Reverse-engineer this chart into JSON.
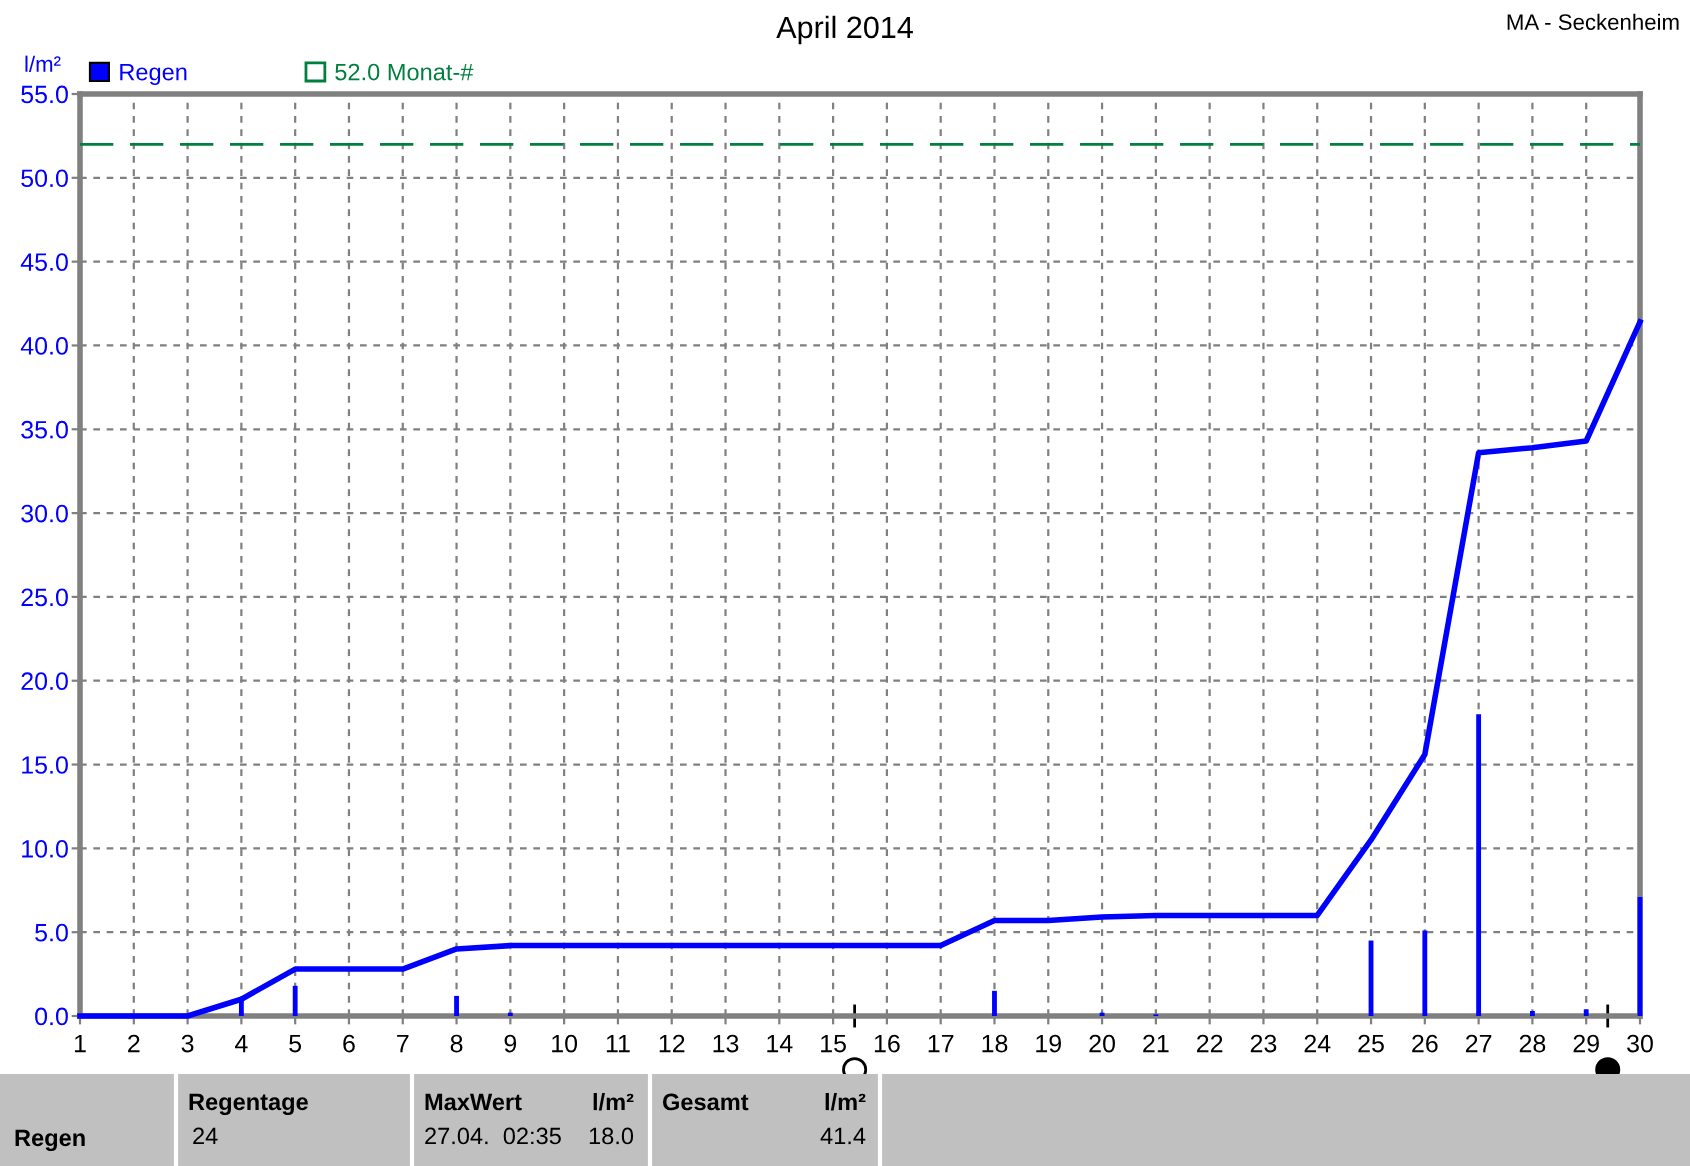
{
  "chart_data": {
    "type": "bar",
    "title": "April 2014",
    "subtitle": "MA - Seckenheim",
    "ylabel": "l/m²",
    "x": [
      1,
      2,
      3,
      4,
      5,
      6,
      7,
      8,
      9,
      10,
      11,
      12,
      13,
      14,
      15,
      16,
      17,
      18,
      19,
      20,
      21,
      22,
      23,
      24,
      25,
      26,
      27,
      28,
      29,
      30
    ],
    "series": [
      {
        "name": "Regen",
        "color": "#0000ff",
        "values": [
          0,
          0,
          0,
          1.0,
          1.8,
          0,
          0,
          1.2,
          0.2,
          0,
          0,
          0,
          0,
          0,
          0,
          0,
          0,
          1.5,
          0,
          0.2,
          0.1,
          0,
          0,
          0,
          4.5,
          5.1,
          18.0,
          0.3,
          0.4,
          7.1
        ]
      },
      {
        "type": "line",
        "color": "#0000ff",
        "values": [
          0,
          0,
          0,
          1.0,
          2.8,
          2.8,
          2.8,
          4.0,
          4.2,
          4.2,
          4.2,
          4.2,
          4.2,
          4.2,
          4.2,
          4.2,
          4.2,
          5.7,
          5.7,
          5.9,
          6.0,
          6.0,
          6.0,
          6.0,
          10.5,
          15.6,
          33.6,
          33.9,
          34.3,
          41.4
        ]
      }
    ],
    "xlim": [
      1,
      30
    ],
    "xticks": [
      1,
      2,
      3,
      4,
      5,
      6,
      7,
      8,
      9,
      10,
      11,
      12,
      13,
      14,
      15,
      16,
      17,
      18,
      19,
      20,
      21,
      22,
      23,
      24,
      25,
      26,
      27,
      28,
      29,
      30
    ],
    "ylim": [
      0,
      55
    ],
    "yticks": [
      {
        "value": 0,
        "label": "0.0"
      },
      {
        "value": 5,
        "label": "5.0"
      },
      {
        "value": 10,
        "label": "10.0"
      },
      {
        "value": 15,
        "label": "15.0"
      },
      {
        "value": 20,
        "label": "20.0"
      },
      {
        "value": 25,
        "label": "25.0"
      },
      {
        "value": 30,
        "label": "30.0"
      },
      {
        "value": 35,
        "label": "35.0"
      },
      {
        "value": 40,
        "label": "40.0"
      },
      {
        "value": 45,
        "label": "45.0"
      },
      {
        "value": 50,
        "label": "50.0"
      },
      {
        "value": 55,
        "label": "55.0"
      }
    ],
    "ref_lines": [
      {
        "axis": "y",
        "value": 52,
        "label": "52.0 Monat-#",
        "color": "#007f3f",
        "line_style": "dashed"
      }
    ],
    "grid": true,
    "legend": "top left",
    "annotations": [
      "Regen",
      "Regentage",
      "24",
      "MaxWert",
      "l/m²",
      "27.04.  02:35",
      "18.0",
      "Gesamt",
      "l/m²",
      "41.4"
    ]
  }
}
